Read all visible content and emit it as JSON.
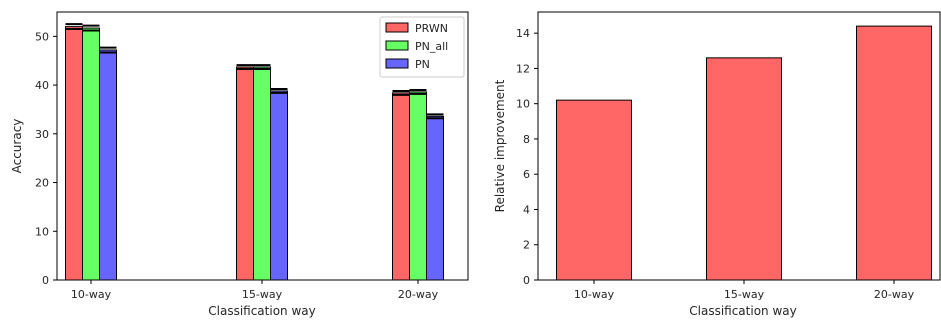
{
  "chart_data": [
    {
      "type": "bar",
      "xlabel": "Classification way",
      "ylabel": "Accuracy",
      "categories": [
        "10-way",
        "15-way",
        "20-way"
      ],
      "ylim": [
        0,
        55
      ],
      "yticks": [
        0,
        10,
        20,
        30,
        40,
        50
      ],
      "legend_position": "top-right",
      "error_bars": true,
      "series": [
        {
          "name": "PRWN",
          "color": "#ff6666",
          "values": [
            52.0,
            43.7,
            38.4
          ],
          "errors": [
            0.5,
            0.4,
            0.4
          ]
        },
        {
          "name": "PN_all",
          "color": "#66ff66",
          "values": [
            51.7,
            43.7,
            38.6
          ],
          "errors": [
            0.5,
            0.4,
            0.4
          ]
        },
        {
          "name": "PN",
          "color": "#6666ff",
          "values": [
            47.2,
            38.8,
            33.6
          ],
          "errors": [
            0.5,
            0.4,
            0.4
          ]
        }
      ]
    },
    {
      "type": "bar",
      "xlabel": "Classification way",
      "ylabel": "Relative improvement",
      "categories": [
        "10-way",
        "15-way",
        "20-way"
      ],
      "ylim": [
        0,
        15.2
      ],
      "yticks": [
        0,
        2,
        4,
        6,
        8,
        10,
        12,
        14
      ],
      "color": "#ff6666",
      "values": [
        10.2,
        12.6,
        14.4
      ]
    }
  ]
}
